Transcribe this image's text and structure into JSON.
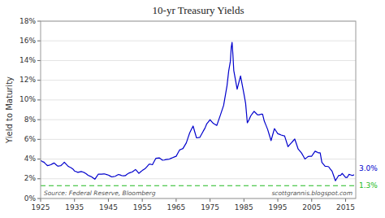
{
  "chart_data": {
    "type": "line",
    "title": "10-yr Treasury Yields",
    "y_label": "Yield to Maturity",
    "color": "#0000CC",
    "grid": true,
    "xlim": [
      1925,
      2018
    ],
    "ylim": [
      0,
      18
    ],
    "xticks": [
      1925,
      1935,
      1945,
      1955,
      1965,
      1975,
      1985,
      1995,
      2005,
      2015
    ],
    "yticks": [
      {
        "value": 0,
        "label": "0%"
      },
      {
        "value": 2,
        "label": "2%"
      },
      {
        "value": 4,
        "label": "4%"
      },
      {
        "value": 6,
        "label": "6%"
      },
      {
        "value": 8,
        "label": "8%"
      },
      {
        "value": 10,
        "label": "10%"
      },
      {
        "value": 12,
        "label": "12%"
      },
      {
        "value": 14,
        "label": "14%"
      },
      {
        "value": 16,
        "label": "16%"
      },
      {
        "value": 18,
        "label": "18%"
      }
    ],
    "reference_lines": [
      {
        "value": 1.3,
        "color": "#22BB22",
        "line_style": "dashed"
      }
    ],
    "annotations": [
      {
        "text": "3.0%",
        "y": 3.0,
        "color": "#0000CC"
      },
      {
        "text": "1.3%",
        "y": 1.3,
        "color": "#22BB22"
      }
    ],
    "notes": [
      "Source: Federal Reserve, Bloomberg",
      "scottgrannis.blogspot.com"
    ],
    "x": [
      1925.0,
      1925.5,
      1926.0,
      1926.5,
      1927.0,
      1927.5,
      1928.0,
      1928.5,
      1929.0,
      1929.5,
      1930.0,
      1930.5,
      1931.0,
      1931.5,
      1932.0,
      1932.5,
      1933.0,
      1933.5,
      1934.0,
      1934.5,
      1935.0,
      1935.5,
      1936.0,
      1936.5,
      1937.0,
      1937.5,
      1938.0,
      1938.5,
      1939.0,
      1939.5,
      1940.0,
      1940.5,
      1941.0,
      1941.5,
      1942.0,
      1942.5,
      1943.0,
      1943.5,
      1944.0,
      1944.5,
      1945.0,
      1945.5,
      1946.0,
      1946.5,
      1947.0,
      1947.5,
      1948.0,
      1948.5,
      1949.0,
      1949.5,
      1950.0,
      1950.5,
      1951.0,
      1951.5,
      1952.0,
      1952.5,
      1953.0,
      1953.5,
      1954.0,
      1954.5,
      1955.0,
      1955.5,
      1956.0,
      1956.5,
      1957.0,
      1957.5,
      1958.0,
      1958.5,
      1959.0,
      1959.5,
      1960.0,
      1960.5,
      1961.0,
      1961.5,
      1962.0,
      1962.5,
      1963.0,
      1963.5,
      1964.0,
      1964.5,
      1965.0,
      1965.5,
      1966.0,
      1966.5,
      1967.0,
      1967.5,
      1968.0,
      1968.5,
      1969.0,
      1969.5,
      1970.0,
      1970.5,
      1971.0,
      1971.5,
      1972.0,
      1972.5,
      1973.0,
      1973.5,
      1974.0,
      1974.5,
      1975.0,
      1975.5,
      1976.0,
      1976.5,
      1977.0,
      1977.5,
      1978.0,
      1978.5,
      1979.0,
      1979.5,
      1980.0,
      1980.5,
      1981.0,
      1981.25,
      1981.5,
      1981.75,
      1982.0,
      1982.5,
      1983.0,
      1983.5,
      1984.0,
      1984.5,
      1985.0,
      1985.5,
      1986.0,
      1986.5,
      1987.0,
      1987.5,
      1988.0,
      1988.5,
      1989.0,
      1989.5,
      1990.0,
      1990.5,
      1991.0,
      1991.5,
      1992.0,
      1992.5,
      1993.0,
      1993.5,
      1994.0,
      1994.5,
      1995.0,
      1995.5,
      1996.0,
      1996.5,
      1997.0,
      1997.5,
      1998.0,
      1998.5,
      1999.0,
      1999.5,
      2000.0,
      2000.5,
      2001.0,
      2001.5,
      2002.0,
      2002.5,
      2003.0,
      2003.5,
      2004.0,
      2004.5,
      2005.0,
      2005.5,
      2006.0,
      2006.5,
      2007.0,
      2007.5,
      2008.0,
      2008.5,
      2009.0,
      2009.5,
      2010.0,
      2010.5,
      2011.0,
      2011.5,
      2012.0,
      2012.5,
      2013.0,
      2013.5,
      2014.0,
      2014.5,
      2015.0,
      2015.5,
      2016.0,
      2016.5,
      2017.0,
      2017.5
    ],
    "values": [
      3.86,
      3.75,
      3.68,
      3.5,
      3.34,
      3.38,
      3.43,
      3.52,
      3.6,
      3.45,
      3.29,
      3.3,
      3.34,
      3.5,
      3.68,
      3.5,
      3.31,
      3.2,
      3.12,
      3.0,
      2.79,
      2.72,
      2.65,
      2.7,
      2.74,
      2.68,
      2.61,
      2.5,
      2.36,
      2.28,
      2.21,
      2.08,
      1.95,
      2.2,
      2.46,
      2.47,
      2.47,
      2.48,
      2.48,
      2.43,
      2.37,
      2.28,
      2.19,
      2.22,
      2.25,
      2.35,
      2.44,
      2.38,
      2.31,
      2.3,
      2.32,
      2.45,
      2.57,
      2.63,
      2.68,
      2.81,
      2.94,
      2.75,
      2.55,
      2.7,
      2.84,
      2.96,
      3.08,
      3.28,
      3.47,
      3.47,
      3.43,
      3.75,
      4.07,
      4.1,
      4.12,
      4.0,
      3.88,
      3.9,
      3.95,
      3.98,
      4.0,
      4.08,
      4.15,
      4.22,
      4.28,
      4.6,
      4.92,
      5.0,
      5.07,
      5.36,
      5.65,
      6.16,
      6.67,
      7.01,
      7.35,
      6.75,
      6.16,
      6.18,
      6.21,
      6.52,
      6.84,
      7.13,
      7.56,
      7.78,
      7.99,
      7.8,
      7.61,
      7.52,
      7.42,
      7.92,
      8.41,
      8.93,
      9.44,
      10.44,
      11.43,
      12.93,
      13.92,
      15.32,
      15.84,
      14.59,
      13.0,
      12.05,
      11.1,
      11.77,
      12.44,
      11.53,
      10.62,
      9.65,
      7.68,
      7.98,
      8.38,
      8.62,
      8.85,
      8.67,
      8.49,
      8.49,
      8.55,
      8.55,
      7.86,
      7.44,
      7.01,
      6.44,
      5.87,
      6.48,
      7.09,
      6.83,
      6.57,
      6.51,
      6.44,
      6.39,
      6.35,
      5.81,
      5.26,
      5.46,
      5.65,
      5.84,
      6.03,
      5.53,
      5.02,
      4.82,
      4.61,
      4.31,
      4.01,
      4.14,
      4.27,
      4.28,
      4.29,
      4.55,
      4.8,
      4.72,
      4.63,
      4.63,
      3.66,
      3.46,
      3.26,
      3.26,
      3.22,
      2.99,
      2.78,
      2.29,
      1.8,
      2.08,
      2.35,
      2.35,
      2.54,
      2.34,
      2.14,
      2.14,
      2.45,
      2.39,
      2.33,
      2.4
    ]
  }
}
